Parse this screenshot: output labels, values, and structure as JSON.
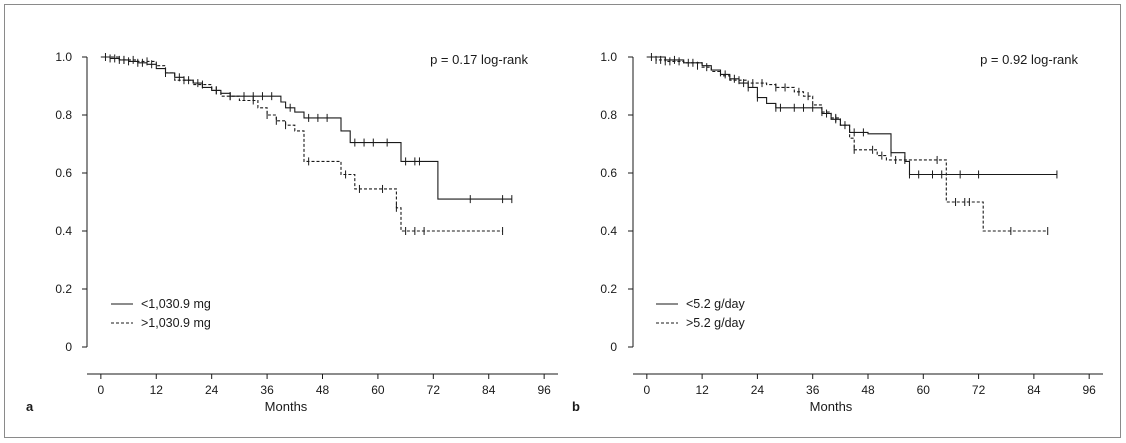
{
  "chart_data": [
    {
      "type": "line",
      "panel_label": "a",
      "xlabel": "Months",
      "ylabel": "",
      "annotation": "p = 0.17 log-rank",
      "xlim": [
        -3,
        99
      ],
      "ylim": [
        0,
        1.0
      ],
      "xticks": [
        "0",
        "12",
        "24",
        "36",
        "48",
        "60",
        "72",
        "84",
        "96"
      ],
      "yticks": [
        "0",
        "0.2",
        "0.4",
        "0.6",
        "0.8",
        "1.0"
      ],
      "legend_position": "bottom-left",
      "series": [
        {
          "name": "<1,030.9 mg",
          "style": "solid",
          "steps": [
            [
              0,
              1.0
            ],
            [
              2,
              0.995
            ],
            [
              4,
              0.99
            ],
            [
              6,
              0.985
            ],
            [
              8,
              0.98
            ],
            [
              10,
              0.975
            ],
            [
              12,
              0.96
            ],
            [
              14,
              0.945
            ],
            [
              16,
              0.93
            ],
            [
              18,
              0.92
            ],
            [
              20,
              0.91
            ],
            [
              22,
              0.895
            ],
            [
              24,
              0.885
            ],
            [
              26,
              0.875
            ],
            [
              28,
              0.865
            ],
            [
              39,
              0.845
            ],
            [
              40,
              0.825
            ],
            [
              42,
              0.81
            ],
            [
              44,
              0.79
            ],
            [
              52,
              0.745
            ],
            [
              54,
              0.705
            ],
            [
              65,
              0.64
            ],
            [
              73,
              0.51
            ],
            [
              89,
              0.51
            ]
          ],
          "censored": [
            [
              2,
              0.995
            ],
            [
              3,
              0.995
            ],
            [
              4,
              0.99
            ],
            [
              5,
              0.99
            ],
            [
              6,
              0.985
            ],
            [
              8,
              0.98
            ],
            [
              9,
              0.98
            ],
            [
              11,
              0.975
            ],
            [
              14,
              0.945
            ],
            [
              17,
              0.93
            ],
            [
              19,
              0.92
            ],
            [
              21,
              0.91
            ],
            [
              25,
              0.885
            ],
            [
              28,
              0.865
            ],
            [
              31,
              0.865
            ],
            [
              33,
              0.865
            ],
            [
              35,
              0.865
            ],
            [
              37,
              0.865
            ],
            [
              41,
              0.825
            ],
            [
              45,
              0.79
            ],
            [
              47,
              0.79
            ],
            [
              49,
              0.79
            ],
            [
              55,
              0.705
            ],
            [
              57,
              0.705
            ],
            [
              59,
              0.705
            ],
            [
              62,
              0.705
            ],
            [
              66,
              0.64
            ],
            [
              68,
              0.64
            ],
            [
              69,
              0.64
            ],
            [
              80,
              0.51
            ],
            [
              87,
              0.51
            ],
            [
              89,
              0.51
            ]
          ]
        },
        {
          "name": ">1,030.9 mg",
          "style": "dashed",
          "steps": [
            [
              0,
              1.0
            ],
            [
              4,
              0.99
            ],
            [
              8,
              0.985
            ],
            [
              12,
              0.97
            ],
            [
              14,
              0.945
            ],
            [
              16,
              0.92
            ],
            [
              20,
              0.905
            ],
            [
              24,
              0.885
            ],
            [
              26,
              0.865
            ],
            [
              30,
              0.85
            ],
            [
              34,
              0.825
            ],
            [
              36,
              0.8
            ],
            [
              38,
              0.78
            ],
            [
              40,
              0.765
            ],
            [
              42,
              0.745
            ],
            [
              44,
              0.64
            ],
            [
              52,
              0.595
            ],
            [
              55,
              0.545
            ],
            [
              62,
              0.545
            ],
            [
              64,
              0.48
            ],
            [
              65,
              0.4
            ],
            [
              87,
              0.4
            ]
          ],
          "censored": [
            [
              1,
              1.0
            ],
            [
              5,
              0.99
            ],
            [
              7,
              0.99
            ],
            [
              10,
              0.985
            ],
            [
              18,
              0.92
            ],
            [
              22,
              0.905
            ],
            [
              25,
              0.885
            ],
            [
              28,
              0.865
            ],
            [
              33,
              0.85
            ],
            [
              36,
              0.8
            ],
            [
              38,
              0.78
            ],
            [
              40,
              0.765
            ],
            [
              45,
              0.64
            ],
            [
              53,
              0.595
            ],
            [
              56,
              0.545
            ],
            [
              61,
              0.545
            ],
            [
              64,
              0.48
            ],
            [
              66,
              0.4
            ],
            [
              68,
              0.4
            ],
            [
              70,
              0.4
            ],
            [
              87,
              0.4
            ]
          ]
        }
      ]
    },
    {
      "type": "line",
      "panel_label": "b",
      "xlabel": "Months",
      "ylabel": "",
      "annotation": "p = 0.92 log-rank",
      "xlim": [
        -3,
        99
      ],
      "ylim": [
        0,
        1.0
      ],
      "xticks": [
        "0",
        "12",
        "24",
        "36",
        "48",
        "60",
        "72",
        "84",
        "96"
      ],
      "yticks": [
        "0",
        "0.2",
        "0.4",
        "0.6",
        "0.8",
        "1.0"
      ],
      "legend_position": "bottom-left",
      "series": [
        {
          "name": "<5.2 g/day",
          "style": "solid",
          "steps": [
            [
              0,
              1.0
            ],
            [
              4,
              0.99
            ],
            [
              8,
              0.98
            ],
            [
              12,
              0.97
            ],
            [
              14,
              0.955
            ],
            [
              16,
              0.94
            ],
            [
              18,
              0.925
            ],
            [
              20,
              0.91
            ],
            [
              22,
              0.895
            ],
            [
              24,
              0.86
            ],
            [
              26,
              0.84
            ],
            [
              28,
              0.825
            ],
            [
              38,
              0.805
            ],
            [
              40,
              0.785
            ],
            [
              42,
              0.765
            ],
            [
              44,
              0.74
            ],
            [
              48,
              0.735
            ],
            [
              51,
              0.735
            ],
            [
              53,
              0.67
            ],
            [
              56,
              0.64
            ],
            [
              57,
              0.595
            ],
            [
              89,
              0.595
            ]
          ],
          "censored": [
            [
              1,
              1.0
            ],
            [
              3,
              0.99
            ],
            [
              6,
              0.99
            ],
            [
              9,
              0.98
            ],
            [
              11,
              0.97
            ],
            [
              17,
              0.94
            ],
            [
              19,
              0.925
            ],
            [
              21,
              0.91
            ],
            [
              22,
              0.895
            ],
            [
              24,
              0.86
            ],
            [
              28,
              0.825
            ],
            [
              29,
              0.825
            ],
            [
              32,
              0.825
            ],
            [
              34,
              0.825
            ],
            [
              36,
              0.825
            ],
            [
              39,
              0.805
            ],
            [
              41,
              0.785
            ],
            [
              45,
              0.74
            ],
            [
              47,
              0.74
            ],
            [
              53,
              0.67
            ],
            [
              57,
              0.595
            ],
            [
              59,
              0.595
            ],
            [
              62,
              0.595
            ],
            [
              64,
              0.595
            ],
            [
              68,
              0.595
            ],
            [
              72,
              0.595
            ],
            [
              89,
              0.595
            ]
          ]
        },
        {
          "name": ">5.2 g/day",
          "style": "dashed",
          "steps": [
            [
              0,
              1.0
            ],
            [
              2,
              0.99
            ],
            [
              4,
              0.985
            ],
            [
              8,
              0.98
            ],
            [
              12,
              0.965
            ],
            [
              14,
              0.95
            ],
            [
              16,
              0.935
            ],
            [
              18,
              0.92
            ],
            [
              22,
              0.91
            ],
            [
              26,
              0.905
            ],
            [
              28,
              0.895
            ],
            [
              32,
              0.88
            ],
            [
              34,
              0.865
            ],
            [
              36,
              0.835
            ],
            [
              38,
              0.81
            ],
            [
              40,
              0.79
            ],
            [
              42,
              0.765
            ],
            [
              44,
              0.72
            ],
            [
              45,
              0.68
            ],
            [
              49,
              0.68
            ],
            [
              50,
              0.66
            ],
            [
              52,
              0.645
            ],
            [
              64,
              0.645
            ],
            [
              65,
              0.5
            ],
            [
              72,
              0.5
            ],
            [
              73,
              0.4
            ],
            [
              87,
              0.4
            ]
          ],
          "censored": [
            [
              2,
              0.99
            ],
            [
              4,
              0.985
            ],
            [
              5,
              0.985
            ],
            [
              7,
              0.985
            ],
            [
              10,
              0.98
            ],
            [
              13,
              0.965
            ],
            [
              20,
              0.92
            ],
            [
              23,
              0.91
            ],
            [
              25,
              0.91
            ],
            [
              28,
              0.895
            ],
            [
              30,
              0.895
            ],
            [
              33,
              0.88
            ],
            [
              35,
              0.865
            ],
            [
              38,
              0.81
            ],
            [
              41,
              0.79
            ],
            [
              43,
              0.765
            ],
            [
              45,
              0.68
            ],
            [
              49,
              0.68
            ],
            [
              51,
              0.66
            ],
            [
              54,
              0.645
            ],
            [
              56,
              0.645
            ],
            [
              63,
              0.645
            ],
            [
              67,
              0.5
            ],
            [
              69,
              0.5
            ],
            [
              70,
              0.5
            ],
            [
              79,
              0.4
            ],
            [
              87,
              0.4
            ]
          ]
        }
      ]
    }
  ]
}
